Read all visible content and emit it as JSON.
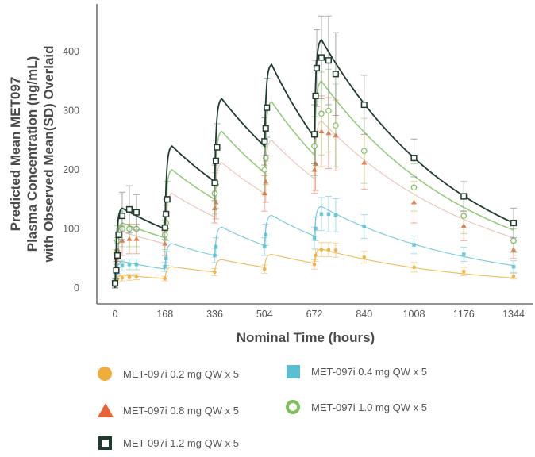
{
  "chart_data": {
    "type": "line",
    "title": "",
    "ylabel_lines": [
      "Predicted Mean MET097",
      "Plasma Concentration (ng/mL)",
      "with Observed Mean(SD) Overlaid"
    ],
    "xlabel": "Nominal Time (hours)",
    "xlim": [
      -60,
      1344
    ],
    "ylim": [
      -25,
      480
    ],
    "xticks": [
      0,
      168,
      336,
      504,
      672,
      840,
      1008,
      1176,
      1344
    ],
    "yticks": [
      0,
      100,
      200,
      300,
      400
    ],
    "grid": false,
    "legend_position": "bottom",
    "dose_times": [
      0,
      168,
      336,
      504,
      672
    ],
    "series": [
      {
        "name": "MET-097i 0.2 mg QW x 5",
        "color": "#f0ad3c",
        "marker": "circle",
        "predicted": {
          "peaks": [
            22,
            36,
            48,
            57,
            66
          ],
          "troughs_before_next_dose": [
            16,
            27,
            35,
            42
          ],
          "end_value": 17
        },
        "observed": [
          {
            "t": 0,
            "y": 2,
            "sd": 2
          },
          {
            "t": 4,
            "y": 12,
            "sd": 4
          },
          {
            "t": 8,
            "y": 15,
            "sd": 5
          },
          {
            "t": 24,
            "y": 17,
            "sd": 5
          },
          {
            "t": 48,
            "y": 18,
            "sd": 5
          },
          {
            "t": 72,
            "y": 19,
            "sd": 5
          },
          {
            "t": 168,
            "y": 16,
            "sd": 4
          },
          {
            "t": 336,
            "y": 27,
            "sd": 6
          },
          {
            "t": 504,
            "y": 32,
            "sd": 7
          },
          {
            "t": 672,
            "y": 40,
            "sd": 8
          },
          {
            "t": 676,
            "y": 55,
            "sd": 10
          },
          {
            "t": 696,
            "y": 65,
            "sd": 12
          },
          {
            "t": 720,
            "y": 65,
            "sd": 12
          },
          {
            "t": 744,
            "y": 64,
            "sd": 12
          },
          {
            "t": 840,
            "y": 52,
            "sd": 10
          },
          {
            "t": 1008,
            "y": 35,
            "sd": 8
          },
          {
            "t": 1176,
            "y": 28,
            "sd": 7
          },
          {
            "t": 1344,
            "y": 20,
            "sd": 5
          }
        ]
      },
      {
        "name": "MET-097i 0.4 mg QW x 5",
        "color": "#5bbfd3",
        "marker": "square-filled",
        "predicted": {
          "peaks": [
            45,
            75,
            103,
            123,
            138
          ],
          "troughs_before_next_dose": [
            32,
            55,
            72,
            88
          ],
          "end_value": 38
        },
        "observed": [
          {
            "t": 0,
            "y": 4,
            "sd": 3
          },
          {
            "t": 4,
            "y": 25,
            "sd": 8
          },
          {
            "t": 8,
            "y": 32,
            "sd": 8
          },
          {
            "t": 24,
            "y": 38,
            "sd": 9
          },
          {
            "t": 48,
            "y": 40,
            "sd": 9
          },
          {
            "t": 72,
            "y": 40,
            "sd": 9
          },
          {
            "t": 168,
            "y": 36,
            "sd": 8
          },
          {
            "t": 172,
            "y": 50,
            "sd": 12
          },
          {
            "t": 336,
            "y": 55,
            "sd": 12
          },
          {
            "t": 340,
            "y": 70,
            "sd": 15
          },
          {
            "t": 504,
            "y": 70,
            "sd": 15
          },
          {
            "t": 508,
            "y": 90,
            "sd": 18
          },
          {
            "t": 672,
            "y": 85,
            "sd": 18
          },
          {
            "t": 676,
            "y": 100,
            "sd": 20
          },
          {
            "t": 696,
            "y": 125,
            "sd": 28
          },
          {
            "t": 720,
            "y": 125,
            "sd": 30
          },
          {
            "t": 744,
            "y": 123,
            "sd": 28
          },
          {
            "t": 840,
            "y": 104,
            "sd": 20
          },
          {
            "t": 1008,
            "y": 73,
            "sd": 15
          },
          {
            "t": 1176,
            "y": 57,
            "sd": 12
          },
          {
            "t": 1344,
            "y": 36,
            "sd": 10
          }
        ]
      },
      {
        "name": "MET-097i 0.8 mg QW x 5",
        "color": "#e8633a",
        "marker": "triangle",
        "predicted": {
          "peaks": [
            95,
            160,
            212,
            250,
            283
          ],
          "troughs_before_next_dose": [
            75,
            120,
            160,
            185
          ],
          "end_value": 85
        },
        "observed": [
          {
            "t": 0,
            "y": 8,
            "sd": 5
          },
          {
            "t": 4,
            "y": 50,
            "sd": 15
          },
          {
            "t": 8,
            "y": 65,
            "sd": 20
          },
          {
            "t": 24,
            "y": 80,
            "sd": 25
          },
          {
            "t": 48,
            "y": 83,
            "sd": 25
          },
          {
            "t": 72,
            "y": 83,
            "sd": 25
          },
          {
            "t": 168,
            "y": 75,
            "sd": 20
          },
          {
            "t": 336,
            "y": 135,
            "sd": 25
          },
          {
            "t": 340,
            "y": 145,
            "sd": 28
          },
          {
            "t": 504,
            "y": 160,
            "sd": 30
          },
          {
            "t": 508,
            "y": 180,
            "sd": 35
          },
          {
            "t": 672,
            "y": 200,
            "sd": 40
          },
          {
            "t": 676,
            "y": 210,
            "sd": 45
          },
          {
            "t": 696,
            "y": 265,
            "sd": 60
          },
          {
            "t": 720,
            "y": 262,
            "sd": 60
          },
          {
            "t": 744,
            "y": 258,
            "sd": 60
          },
          {
            "t": 840,
            "y": 212,
            "sd": 45
          },
          {
            "t": 1008,
            "y": 145,
            "sd": 35
          },
          {
            "t": 1176,
            "y": 105,
            "sd": 25
          },
          {
            "t": 1344,
            "y": 65,
            "sd": 15
          }
        ]
      },
      {
        "name": "MET-097i 1.0 mg QW x 5",
        "color": "#7cbf5c",
        "marker": "circle-open",
        "predicted": {
          "peaks": [
            110,
            200,
            265,
            315,
            350
          ],
          "troughs_before_next_dose": [
            85,
            150,
            195,
            225
          ],
          "end_value": 98
        },
        "observed": [
          {
            "t": 0,
            "y": 10,
            "sd": 6
          },
          {
            "t": 4,
            "y": 60,
            "sd": 20
          },
          {
            "t": 8,
            "y": 80,
            "sd": 25
          },
          {
            "t": 24,
            "y": 100,
            "sd": 30
          },
          {
            "t": 48,
            "y": 100,
            "sd": 30
          },
          {
            "t": 72,
            "y": 100,
            "sd": 30
          },
          {
            "t": 168,
            "y": 90,
            "sd": 25
          },
          {
            "t": 172,
            "y": 110,
            "sd": 30
          },
          {
            "t": 336,
            "y": 160,
            "sd": 35
          },
          {
            "t": 340,
            "y": 175,
            "sd": 40
          },
          {
            "t": 504,
            "y": 200,
            "sd": 40
          },
          {
            "t": 508,
            "y": 220,
            "sd": 45
          },
          {
            "t": 672,
            "y": 240,
            "sd": 50
          },
          {
            "t": 676,
            "y": 260,
            "sd": 55
          },
          {
            "t": 696,
            "y": 295,
            "sd": 70
          },
          {
            "t": 720,
            "y": 300,
            "sd": 70
          },
          {
            "t": 744,
            "y": 275,
            "sd": 70
          },
          {
            "t": 840,
            "y": 232,
            "sd": 55
          },
          {
            "t": 1008,
            "y": 170,
            "sd": 40
          },
          {
            "t": 1176,
            "y": 122,
            "sd": 30
          },
          {
            "t": 1344,
            "y": 80,
            "sd": 20
          }
        ]
      },
      {
        "name": "MET-097i 1.2 mg QW x 5",
        "color": "#1f3d2f",
        "marker": "square-open",
        "predicted": {
          "peaks": [
            135,
            240,
            320,
            378,
            420
          ],
          "troughs_before_next_dose": [
            100,
            180,
            240,
            255
          ],
          "end_value": 110
        },
        "observed": [
          {
            "t": 0,
            "y": 8,
            "sd": 8
          },
          {
            "t": 4,
            "y": 30,
            "sd": 15
          },
          {
            "t": 8,
            "y": 55,
            "sd": 20
          },
          {
            "t": 12,
            "y": 90,
            "sd": 30
          },
          {
            "t": 24,
            "y": 122,
            "sd": 40
          },
          {
            "t": 48,
            "y": 133,
            "sd": 40
          },
          {
            "t": 72,
            "y": 128,
            "sd": 30
          },
          {
            "t": 168,
            "y": 102,
            "sd": 20
          },
          {
            "t": 172,
            "y": 125,
            "sd": 25
          },
          {
            "t": 176,
            "y": 150,
            "sd": 30
          },
          {
            "t": 336,
            "y": 178,
            "sd": 30
          },
          {
            "t": 340,
            "y": 215,
            "sd": 35
          },
          {
            "t": 344,
            "y": 238,
            "sd": 40
          },
          {
            "t": 504,
            "y": 248,
            "sd": 40
          },
          {
            "t": 508,
            "y": 270,
            "sd": 45
          },
          {
            "t": 512,
            "y": 305,
            "sd": 50
          },
          {
            "t": 672,
            "y": 260,
            "sd": 50
          },
          {
            "t": 676,
            "y": 325,
            "sd": 60
          },
          {
            "t": 680,
            "y": 372,
            "sd": 65
          },
          {
            "t": 696,
            "y": 390,
            "sd": 70
          },
          {
            "t": 720,
            "y": 385,
            "sd": 75
          },
          {
            "t": 744,
            "y": 362,
            "sd": 70
          },
          {
            "t": 840,
            "y": 310,
            "sd": 50
          },
          {
            "t": 1008,
            "y": 220,
            "sd": 32
          },
          {
            "t": 1176,
            "y": 155,
            "sd": 25
          },
          {
            "t": 1344,
            "y": 110,
            "sd": 25
          }
        ]
      }
    ]
  },
  "legend": {
    "items": [
      {
        "label": "MET-097i 0.2 mg QW x 5"
      },
      {
        "label": "MET-097i 0.4 mg QW x 5"
      },
      {
        "label": "MET-097i 0.8 mg QW x 5"
      },
      {
        "label": "MET-097i 1.0 mg QW x 5"
      },
      {
        "label": "MET-097i 1.2 mg QW x 5"
      }
    ]
  }
}
